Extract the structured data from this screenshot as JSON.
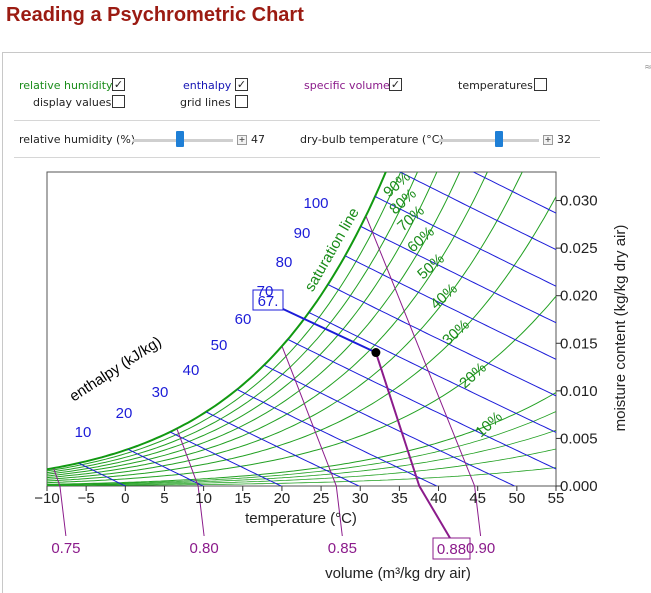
{
  "title": "Reading a Psychrometric Chart",
  "controls": {
    "relative_humidity_label": "relative humidity",
    "relative_humidity_checked": "✓",
    "display_values_label": "display values",
    "display_values_checked": "",
    "enthalpy_label": "enthalpy",
    "enthalpy_checked": "✓",
    "grid_lines_label": "grid lines",
    "grid_lines_checked": "",
    "specific_volume_label": "specific volume",
    "specific_volume_checked": "✓",
    "temperatures_label": "temperatures",
    "temperatures_checked": "",
    "rh_slider_label": "relative humidity (%)",
    "rh_slider_value": "47",
    "rh_slider_fraction": 0.47,
    "db_slider_label": "dry-bulb temperature (°C)",
    "db_slider_value": "32",
    "db_slider_fraction": 0.6,
    "close_glyph": "≈",
    "plus_glyph": "+"
  },
  "colors": {
    "title": "#9b1b12",
    "rh_label": "#1a8c1a",
    "enthalpy_label": "#1414b4",
    "volume_label": "#8a1a8a",
    "rh_lines": "#22a022",
    "saturation": "#119911",
    "enthalpy_lines": "#1c1cd8",
    "volume_lines": "#8b1b8b",
    "point": "#000000"
  },
  "chart_data": {
    "type": "line",
    "xlabel": "temperature (°C)",
    "ylabel": "moisture content (kg/kg dry air)",
    "x_ticks": [
      "−10",
      "−5",
      "0",
      "5",
      "10",
      "15",
      "20",
      "25",
      "30",
      "35",
      "40",
      "45",
      "50",
      "55"
    ],
    "x_tick_values": [
      -10,
      -5,
      0,
      5,
      10,
      15,
      20,
      25,
      30,
      35,
      40,
      45,
      50,
      55
    ],
    "y_ticks": [
      "0.000",
      "0.005",
      "0.010",
      "0.015",
      "0.020",
      "0.025",
      "0.030"
    ],
    "y_tick_values": [
      0,
      0.005,
      0.01,
      0.015,
      0.02,
      0.025,
      0.03
    ],
    "xlim": [
      -10,
      55
    ],
    "ylim": [
      0,
      0.033
    ],
    "relative_humidity": {
      "label": "relative humidity",
      "levels": [
        10,
        20,
        30,
        40,
        50,
        60,
        70,
        80,
        90,
        100
      ],
      "tick_labels": [
        "10%",
        "20%",
        "30%",
        "40%",
        "50%",
        "60%",
        "70%",
        "80%",
        "90%"
      ],
      "saturation_label": "saturation line"
    },
    "enthalpy": {
      "axis_label": "enthalpy (kJ/kg)",
      "levels": [
        0,
        10,
        20,
        30,
        40,
        50,
        60,
        70,
        80,
        90,
        100,
        110,
        120,
        130
      ],
      "tick_labels": [
        "10",
        "20",
        "30",
        "40",
        "50",
        "60",
        "70",
        "80",
        "90",
        "100"
      ],
      "current_value": "67."
    },
    "specific_volume": {
      "axis_label": "volume (m³/kg dry air)",
      "levels": [
        0.75,
        0.8,
        0.85,
        0.9
      ],
      "tick_labels": [
        "0.75",
        "0.80",
        "0.85",
        "0.90"
      ],
      "current_value": "0.88"
    },
    "state_point": {
      "dry_bulb_C": 32,
      "relative_humidity_pct": 47,
      "moisture_content": 0.0142,
      "enthalpy": 67,
      "specific_volume": 0.88
    }
  }
}
